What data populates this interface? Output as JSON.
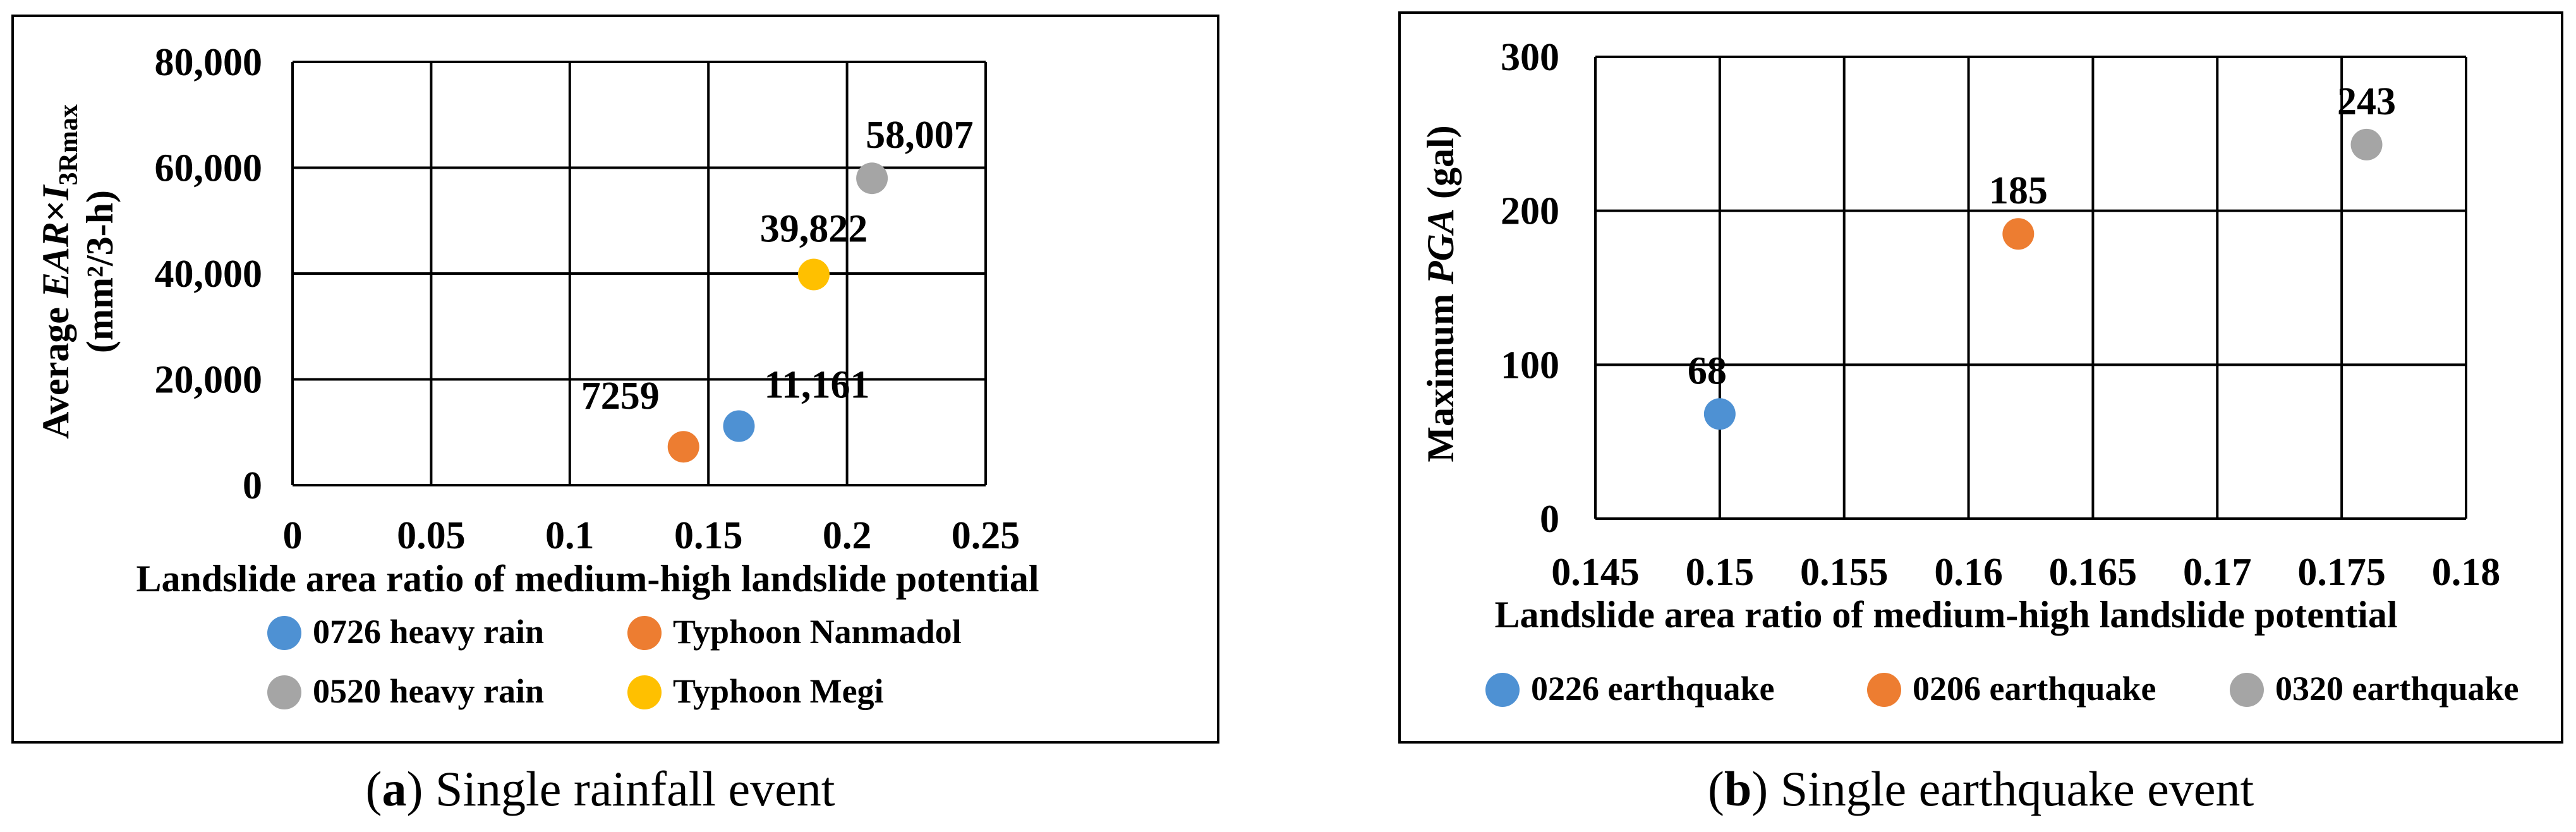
{
  "chart_data": [
    {
      "type": "scatter",
      "ylabel_parts": [
        "Average ",
        "EAR",
        "×",
        "I",
        "3Rmax"
      ],
      "ylabel_unit": "(mm²/3-h)",
      "xlabel": "Landslide area ratio of medium-high landslide potential",
      "xlim": [
        0,
        0.25
      ],
      "ylim": [
        0,
        80000
      ],
      "xticks": [
        "0",
        "0.05",
        "0.1",
        "0.15",
        "0.2",
        "0.25"
      ],
      "yticks": [
        "0",
        "20,000",
        "40,000",
        "60,000",
        "80,000"
      ],
      "grid": true,
      "legend_placement": "bottom",
      "series": [
        {
          "name": "0726 heavy rain",
          "color": "#4e91d3",
          "x": 0.161,
          "y": 11161,
          "label": "11,161"
        },
        {
          "name": "Typhoon Nanmadol",
          "color": "#ed7d31",
          "x": 0.141,
          "y": 7259,
          "label": "7259"
        },
        {
          "name": "0520 heavy rain",
          "color": "#a5a5a5",
          "x": 0.209,
          "y": 58007,
          "label": "58,007"
        },
        {
          "name": "Typhoon Megi",
          "color": "#ffc000",
          "x": 0.188,
          "y": 39822,
          "label": "39,822"
        }
      ],
      "caption_letter": "a",
      "caption_text": "Single rainfall event"
    },
    {
      "type": "scatter",
      "ylabel_parts": [
        "Maximum ",
        "PGA",
        " (gal)"
      ],
      "xlabel": "Landslide area ratio of medium-high landslide potential",
      "xlim": [
        0.145,
        0.18
      ],
      "ylim": [
        0,
        300
      ],
      "xticks": [
        "0.145",
        "0.15",
        "0.155",
        "0.16",
        "0.165",
        "0.17",
        "0.175",
        "0.18"
      ],
      "yticks": [
        "0",
        "100",
        "200",
        "300"
      ],
      "grid": true,
      "legend_placement": "bottom",
      "series": [
        {
          "name": "0226 earthquake",
          "color": "#4e91d3",
          "x": 0.15,
          "y": 68,
          "label": "68"
        },
        {
          "name": "0206 earthquake",
          "color": "#ed7d31",
          "x": 0.162,
          "y": 185,
          "label": "185"
        },
        {
          "name": "0320 earthquake",
          "color": "#a5a5a5",
          "x": 0.176,
          "y": 243,
          "label": "243"
        }
      ],
      "caption_letter": "b",
      "caption_text": "Single earthquake event"
    }
  ]
}
